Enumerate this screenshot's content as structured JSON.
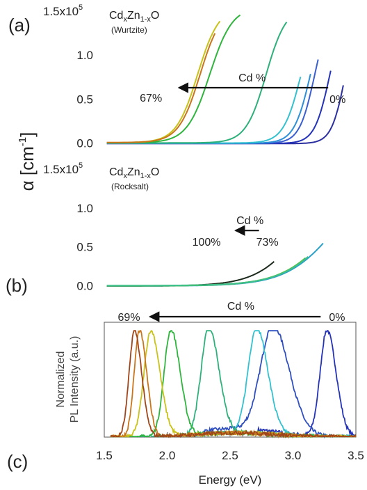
{
  "chart_data": [
    {
      "type": "line",
      "panel": "(a)",
      "formula": {
        "base1": "Cd",
        "sub1": "x",
        "base2": "Zn",
        "sub2": "1-x",
        "base3": "O"
      },
      "phase": "(Wurtzite)",
      "xlim": [
        1.5,
        3.5
      ],
      "ylim": [
        -0.05,
        1.5
      ],
      "yticks": [
        "0.0",
        "0.5",
        "1.0",
        "1.5x10"
      ],
      "ytick_exponent": "5",
      "annotation": {
        "label": "Cd %",
        "from": "0%",
        "to": "67%",
        "arrow_x": [
          3.28,
          2.07
        ],
        "arrow_y": 0.63
      },
      "series": [
        {
          "color": "#2b2fa0",
          "onset": 3.24,
          "width": 0.055,
          "end": 3.4
        },
        {
          "color": "#2433b8",
          "onset": 3.1,
          "width": 0.06,
          "end": 3.3
        },
        {
          "color": "#3a5fd0",
          "onset": 2.98,
          "width": 0.06,
          "end": 3.2
        },
        {
          "color": "#2d8fd8",
          "onset": 2.93,
          "width": 0.065,
          "end": 3.14
        },
        {
          "color": "#34c1cf",
          "onset": 2.84,
          "width": 0.07,
          "end": 3.06
        },
        {
          "color": "#2eb07a",
          "onset": 2.53,
          "width": 0.08,
          "end": 2.95
        },
        {
          "color": "#2fb53e",
          "onset": 2.05,
          "width": 0.09,
          "end": 2.58
        },
        {
          "color": "#c9c21a",
          "onset": 1.97,
          "width": 0.085,
          "end": 2.42
        },
        {
          "color": "#c8761e",
          "onset": 1.99,
          "width": 0.085,
          "end": 2.38
        }
      ]
    },
    {
      "type": "line",
      "panel": "(b)",
      "formula": {
        "base1": "Cd",
        "sub1": "x",
        "base2": "Zn",
        "sub2": "1-x",
        "base3": "O"
      },
      "phase": "(Rocksalt)",
      "xlim": [
        1.5,
        3.5
      ],
      "ylim": [
        -0.05,
        1.5
      ],
      "yticks": [
        "0.0",
        "0.5",
        "1.0",
        "1.5x10"
      ],
      "ytick_exponent": "5",
      "annotation": {
        "label": "Cd %",
        "from": "73%",
        "to": "100%",
        "arrow_x": [
          2.73,
          2.52
        ],
        "arrow_y": 0.71
      },
      "series": [
        {
          "color": "#1d2b1d",
          "onset": 2.52,
          "width": 0.18,
          "end": 2.85
        },
        {
          "color": "#2aa0c8",
          "onset": 2.72,
          "width": 0.2,
          "end": 3.24
        },
        {
          "color": "#2fb53e",
          "onset": 2.7,
          "width": 0.2,
          "end": 3.1
        },
        {
          "color": "#5dc43a",
          "onset": 2.7,
          "width": 0.2,
          "end": 3.09
        },
        {
          "color": "#3fbf8a",
          "onset": 2.71,
          "width": 0.2,
          "end": 3.12
        }
      ]
    },
    {
      "type": "line",
      "panel": "(c)",
      "xlabel": "Energy (eV)",
      "ylabel": [
        "Normalized",
        "PL Intensity (a.u.)"
      ],
      "xlim": [
        1.5,
        3.5
      ],
      "ylim": [
        0,
        1.08
      ],
      "xticks": [
        "1.5",
        "2.0",
        "2.5",
        "3.0",
        "3.5"
      ],
      "annotation": {
        "label": "Cd %",
        "from": "0%",
        "to": "69%",
        "arrow_x": [
          3.22,
          1.84
        ]
      },
      "series": [
        {
          "color": "#2433b8",
          "peak": 3.27,
          "width": 0.09
        },
        {
          "color": "#2f4fc0",
          "peak": 2.84,
          "width": 0.16
        },
        {
          "color": "#34c1cf",
          "peak": 2.71,
          "width": 0.11
        },
        {
          "color": "#2eb07a",
          "peak": 2.33,
          "width": 0.1
        },
        {
          "color": "#2fb53e",
          "peak": 2.03,
          "width": 0.09
        },
        {
          "color": "#c9c21a",
          "peak": 1.87,
          "width": 0.09
        },
        {
          "color": "#c8761e",
          "peak": 1.78,
          "width": 0.07
        },
        {
          "color": "#a0451a",
          "peak": 1.74,
          "width": 0.07
        }
      ]
    }
  ],
  "ylabel_common": {
    "symbol": "α [cm",
    "sup": "-1",
    "close": "]"
  }
}
